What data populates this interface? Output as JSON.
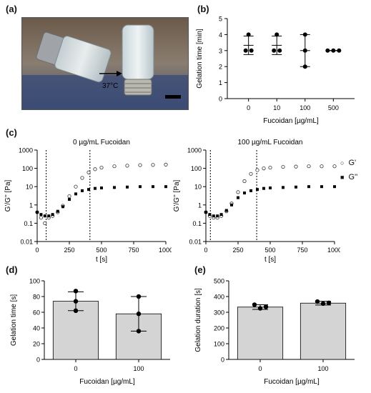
{
  "panels": {
    "a": "(a)",
    "b": "(b)",
    "c": "(c)",
    "d": "(d)",
    "e": "(e)"
  },
  "photo": {
    "temperature_label": "37°C"
  },
  "legend": [
    {
      "symbol": "○",
      "label": "G'"
    },
    {
      "symbol": "■",
      "label": "G''"
    }
  ],
  "chart_data": [
    {
      "id": "b",
      "type": "scatter",
      "title": "",
      "xlabel": "Fucoidan [µg/mL]",
      "ylabel": "Gelation time [min]",
      "categories": [
        "0",
        "10",
        "100",
        "500"
      ],
      "ylim": [
        0,
        5
      ],
      "yticks": [
        0,
        1,
        2,
        3,
        4,
        5
      ],
      "points": [
        [
          4,
          3,
          3
        ],
        [
          4,
          3,
          3
        ],
        [
          4,
          3,
          2
        ],
        [
          3,
          3,
          3
        ]
      ],
      "mean": [
        3.33,
        3.33,
        3.0,
        3.0
      ],
      "sd": [
        0.58,
        0.58,
        1.0,
        0.0
      ]
    },
    {
      "id": "c1",
      "type": "scatter",
      "title": "0 µg/mL Fucoidan",
      "xlabel": "t [s]",
      "ylabel": "G'/G'' [Pa]",
      "xlim": [
        0,
        1000
      ],
      "xticks": [
        0,
        250,
        500,
        750,
        1000
      ],
      "yscale": "log",
      "ylim": [
        0.01,
        1000
      ],
      "yticks": [
        "0.01",
        "0.1",
        "1",
        "10",
        "100",
        "1000"
      ],
      "vlines": [
        70,
        410
      ],
      "series": [
        {
          "name": "G'",
          "x": [
            0,
            30,
            60,
            90,
            120,
            160,
            200,
            250,
            300,
            350,
            400,
            450,
            500,
            600,
            700,
            800,
            900,
            1000
          ],
          "y": [
            0.4,
            0.2,
            0.1,
            0.2,
            0.25,
            0.4,
            0.9,
            3,
            10,
            30,
            60,
            90,
            110,
            130,
            140,
            150,
            155,
            160
          ]
        },
        {
          "name": "G''",
          "x": [
            0,
            30,
            60,
            90,
            120,
            160,
            200,
            250,
            300,
            350,
            400,
            450,
            500,
            600,
            700,
            800,
            900,
            1000
          ],
          "y": [
            0.4,
            0.3,
            0.25,
            0.25,
            0.3,
            0.45,
            0.8,
            2,
            4,
            6,
            7,
            8,
            8.5,
            9,
            9.5,
            10,
            10,
            10
          ]
        }
      ]
    },
    {
      "id": "c2",
      "type": "scatter",
      "title": "100 µg/mL Fucoidan",
      "xlabel": "t [s]",
      "ylabel": "G'/G'' [Pa]",
      "xlim": [
        0,
        1000
      ],
      "xticks": [
        0,
        250,
        500,
        750,
        1000
      ],
      "yscale": "log",
      "ylim": [
        0.01,
        1000
      ],
      "yticks": [
        "0.01",
        "0.1",
        "1",
        "10",
        "100",
        "1000"
      ],
      "vlines": [
        35,
        395
      ],
      "series": [
        {
          "name": "G'",
          "x": [
            0,
            30,
            60,
            90,
            120,
            160,
            200,
            250,
            300,
            350,
            400,
            450,
            500,
            600,
            700,
            800,
            900,
            1000
          ],
          "y": [
            0.4,
            0.25,
            0.2,
            0.2,
            0.25,
            0.45,
            1.2,
            5,
            20,
            50,
            80,
            100,
            110,
            120,
            125,
            130,
            130,
            130
          ]
        },
        {
          "name": "G''",
          "x": [
            0,
            30,
            60,
            90,
            120,
            160,
            200,
            250,
            300,
            350,
            400,
            450,
            500,
            600,
            700,
            800,
            900,
            1000
          ],
          "y": [
            0.4,
            0.3,
            0.25,
            0.25,
            0.3,
            0.5,
            1,
            2.5,
            4.5,
            6,
            7,
            8,
            8.5,
            9,
            9.5,
            10,
            10,
            10
          ]
        }
      ]
    },
    {
      "id": "d",
      "type": "bar",
      "title": "",
      "xlabel": "Fucoidan [µg/mL]",
      "ylabel": "Gelation time [s]",
      "categories": [
        "0",
        "100"
      ],
      "values": [
        74,
        58
      ],
      "sd": [
        12,
        22
      ],
      "points": [
        [
          87,
          74,
          62
        ],
        [
          80,
          58,
          36
        ]
      ],
      "ylim": [
        0,
        100
      ],
      "yticks": [
        0,
        20,
        40,
        60,
        80,
        100
      ]
    },
    {
      "id": "e",
      "type": "bar",
      "title": "",
      "xlabel": "Fucoidan [µg/mL]",
      "ylabel": "Gelation duration [s]",
      "categories": [
        "0",
        "100"
      ],
      "values": [
        333,
        358
      ],
      "sd": [
        15,
        12
      ],
      "points": [
        [
          348,
          325,
          335
        ],
        [
          368,
          355,
          360
        ]
      ],
      "ylim": [
        0,
        500
      ],
      "yticks": [
        0,
        100,
        200,
        300,
        400,
        500
      ]
    }
  ]
}
